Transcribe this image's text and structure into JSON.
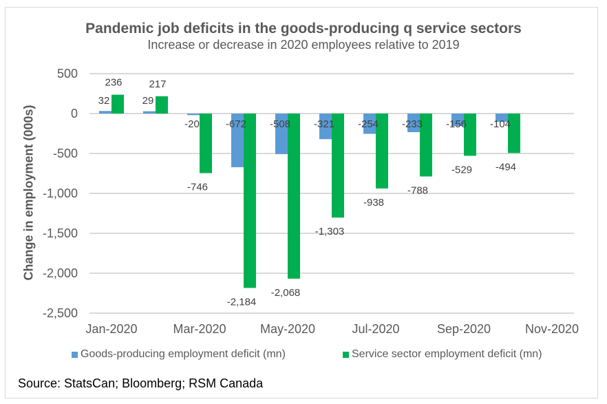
{
  "chart_data": {
    "type": "bar",
    "title": "Pandemic job deficits in the goods-producing q service sectors",
    "subtitle": "Increase or decrease in 2020 employees relative to 2019",
    "xlabel": "",
    "ylabel": "Change in employment (000s)",
    "ylim": [
      -2500,
      500
    ],
    "yticks": [
      500,
      0,
      -500,
      -1000,
      -1500,
      -2000,
      -2500
    ],
    "ytick_labels": [
      "500",
      "0",
      "-500",
      "-1,000",
      "-1,500",
      "-2,000",
      "-2,500"
    ],
    "grid": true,
    "categories": [
      "Jan-2020",
      "Feb-2020",
      "Mar-2020",
      "Apr-2020",
      "May-2020",
      "Jun-2020",
      "Jul-2020",
      "Aug-2020",
      "Sep-2020",
      "Oct-2020",
      "Nov-2020"
    ],
    "xtick_labels": [
      "Jan-2020",
      "",
      "Mar-2020",
      "",
      "May-2020",
      "",
      "Jul-2020",
      "",
      "Sep-2020",
      "",
      "Nov-2020"
    ],
    "series": [
      {
        "name": "Goods-producing employment deficit (mn)",
        "color": "#5B9BD5",
        "values": [
          32,
          29,
          -20,
          -672,
          -508,
          -321,
          -254,
          -233,
          -156,
          -104,
          null
        ],
        "labels": [
          "32",
          "29",
          "-20",
          "-672",
          "-508",
          "-321",
          "-254",
          "-233",
          "-156",
          "-104",
          ""
        ]
      },
      {
        "name": "Service sector employment deficit (mn)",
        "color": "#00B050",
        "values": [
          236,
          217,
          -746,
          -2184,
          -2068,
          -1303,
          -938,
          -788,
          -529,
          -494,
          null
        ],
        "labels": [
          "236",
          "217",
          "-746",
          "-2,184",
          "-2,068",
          "-1,303",
          "-938",
          "-788",
          "-529",
          "-494",
          ""
        ]
      }
    ],
    "legend_position": "bottom"
  },
  "source": "Source: StatsCan; Bloomberg; RSM Canada"
}
